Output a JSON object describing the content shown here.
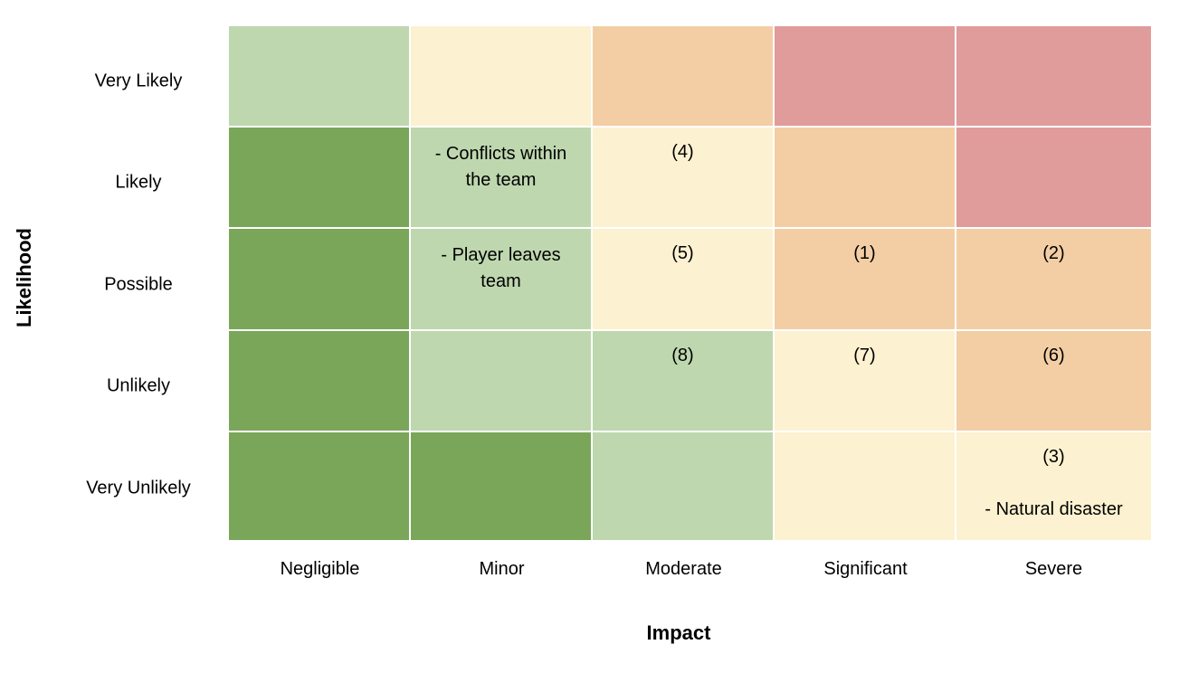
{
  "axes": {
    "y_title": "Likelihood",
    "x_title": "Impact"
  },
  "rows": [
    "Very Likely",
    "Likely",
    "Possible",
    "Unlikely",
    "Very Unlikely"
  ],
  "columns": [
    "Negligible",
    "Minor",
    "Moderate",
    "Significant",
    "Severe"
  ],
  "colors": {
    "dark-green": "#7aa65a",
    "light-green": "#bed7af",
    "cream": "#fcf1d0",
    "peach": "#f3cea4",
    "red": "#df9c9b"
  },
  "cells": [
    [
      {
        "color": "light-green",
        "ref": "",
        "note": ""
      },
      {
        "color": "cream",
        "ref": "",
        "note": ""
      },
      {
        "color": "peach",
        "ref": "",
        "note": ""
      },
      {
        "color": "red",
        "ref": "",
        "note": ""
      },
      {
        "color": "red",
        "ref": "",
        "note": ""
      }
    ],
    [
      {
        "color": "dark-green",
        "ref": "",
        "note": ""
      },
      {
        "color": "light-green",
        "ref": "",
        "note": "- Conflicts within\nthe team"
      },
      {
        "color": "cream",
        "ref": "(4)",
        "note": ""
      },
      {
        "color": "peach",
        "ref": "",
        "note": ""
      },
      {
        "color": "red",
        "ref": "",
        "note": ""
      }
    ],
    [
      {
        "color": "dark-green",
        "ref": "",
        "note": ""
      },
      {
        "color": "light-green",
        "ref": "",
        "note": "- Player leaves\nteam"
      },
      {
        "color": "cream",
        "ref": "(5)",
        "note": ""
      },
      {
        "color": "peach",
        "ref": "(1)",
        "note": ""
      },
      {
        "color": "peach",
        "ref": "(2)",
        "note": ""
      }
    ],
    [
      {
        "color": "dark-green",
        "ref": "",
        "note": ""
      },
      {
        "color": "light-green",
        "ref": "",
        "note": ""
      },
      {
        "color": "light-green",
        "ref": "(8)",
        "note": ""
      },
      {
        "color": "cream",
        "ref": "(7)",
        "note": ""
      },
      {
        "color": "peach",
        "ref": "(6)",
        "note": ""
      }
    ],
    [
      {
        "color": "dark-green",
        "ref": "",
        "note": ""
      },
      {
        "color": "dark-green",
        "ref": "",
        "note": ""
      },
      {
        "color": "light-green",
        "ref": "",
        "note": ""
      },
      {
        "color": "cream",
        "ref": "",
        "note": ""
      },
      {
        "color": "cream",
        "ref": "(3)",
        "note": "- Natural disaster"
      }
    ]
  ]
}
